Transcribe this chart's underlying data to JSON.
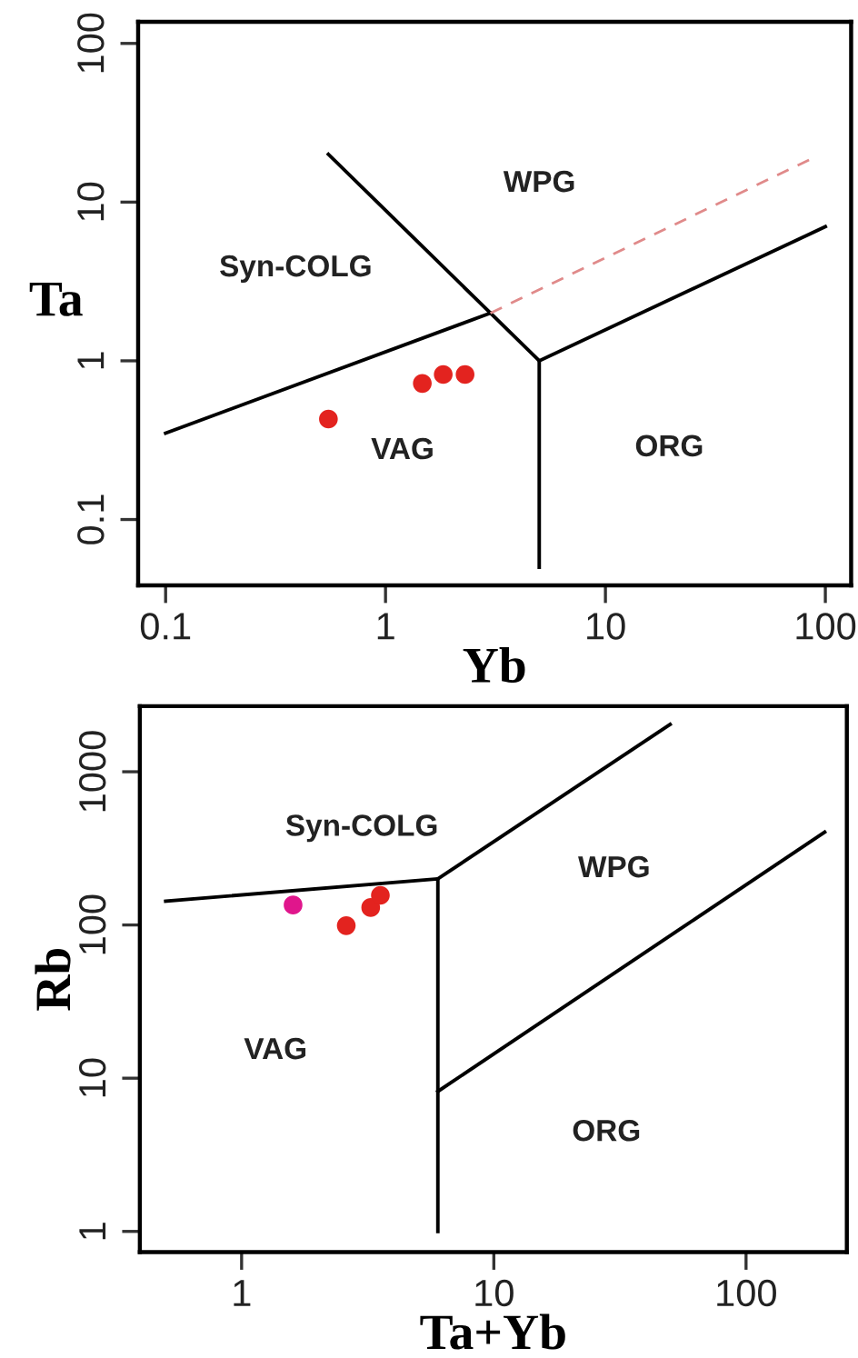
{
  "chart_data": [
    {
      "type": "scatter",
      "xlabel": "Yb",
      "ylabel": "Ta",
      "log": "xy",
      "grid": false,
      "xlim": [
        0.075,
        131
      ],
      "ylim": [
        0.0385,
        137
      ],
      "xticks": [
        0.1,
        1,
        10,
        100
      ],
      "yticks": [
        0.1,
        1,
        10,
        100
      ],
      "series": [
        {
          "type": "scatter",
          "marker": "circle",
          "x": [
            0.55,
            1.47,
            1.83,
            2.3
          ],
          "values": [
            0.43,
            0.72,
            0.82,
            0.82
          ],
          "colors": [
            "#e3231f",
            "#e3231f",
            "#e3231f",
            "#e3231f"
          ]
        },
        {
          "type": "line",
          "color": "#000000",
          "line_style": "solid",
          "x": [
            0.1,
            3
          ],
          "values": [
            0.35,
            2
          ]
        },
        {
          "type": "line",
          "color": "#000000",
          "line_style": "solid",
          "x": [
            0.55,
            3,
            5,
            5
          ],
          "values": [
            20,
            2,
            1,
            0.05
          ]
        },
        {
          "type": "line",
          "color": "#000000",
          "line_style": "solid",
          "x": [
            5,
            100
          ],
          "values": [
            1,
            7
          ]
        },
        {
          "type": "line",
          "color": "#e08a8a",
          "line_style": "dashed",
          "x": [
            3,
            86
          ],
          "values": [
            2,
            18.7
          ]
        }
      ],
      "annotations": [
        "WPG",
        "Syn-COLG",
        "VAG",
        "ORG"
      ]
    },
    {
      "type": "scatter",
      "xlabel": "Ta+Yb",
      "ylabel": "Rb",
      "log": "xy",
      "grid": false,
      "xlim": [
        0.395,
        251
      ],
      "ylim": [
        0.733,
        2680
      ],
      "xticks": [
        1,
        10,
        100
      ],
      "yticks": [
        1,
        10,
        100,
        1000
      ],
      "series": [
        {
          "type": "scatter",
          "marker": "circle",
          "x": [
            1.6,
            2.6,
            3.25,
            3.55
          ],
          "values": [
            135,
            99,
            130,
            156
          ],
          "colors": [
            "#e0168c",
            "#e3231f",
            "#e3231f",
            "#e3231f"
          ]
        },
        {
          "type": "line",
          "color": "#000000",
          "line_style": "solid",
          "x": [
            0.5,
            6,
            6
          ],
          "values": [
            143,
            200,
            1
          ]
        },
        {
          "type": "line",
          "color": "#000000",
          "line_style": "solid",
          "x": [
            6,
            50
          ],
          "values": [
            200,
            2040
          ]
        },
        {
          "type": "line",
          "color": "#000000",
          "line_style": "solid",
          "x": [
            6,
            205
          ],
          "values": [
            8.2,
            404
          ]
        }
      ],
      "annotations": [
        "Syn-COLG",
        "WPG",
        "VAG",
        "ORG"
      ]
    }
  ]
}
